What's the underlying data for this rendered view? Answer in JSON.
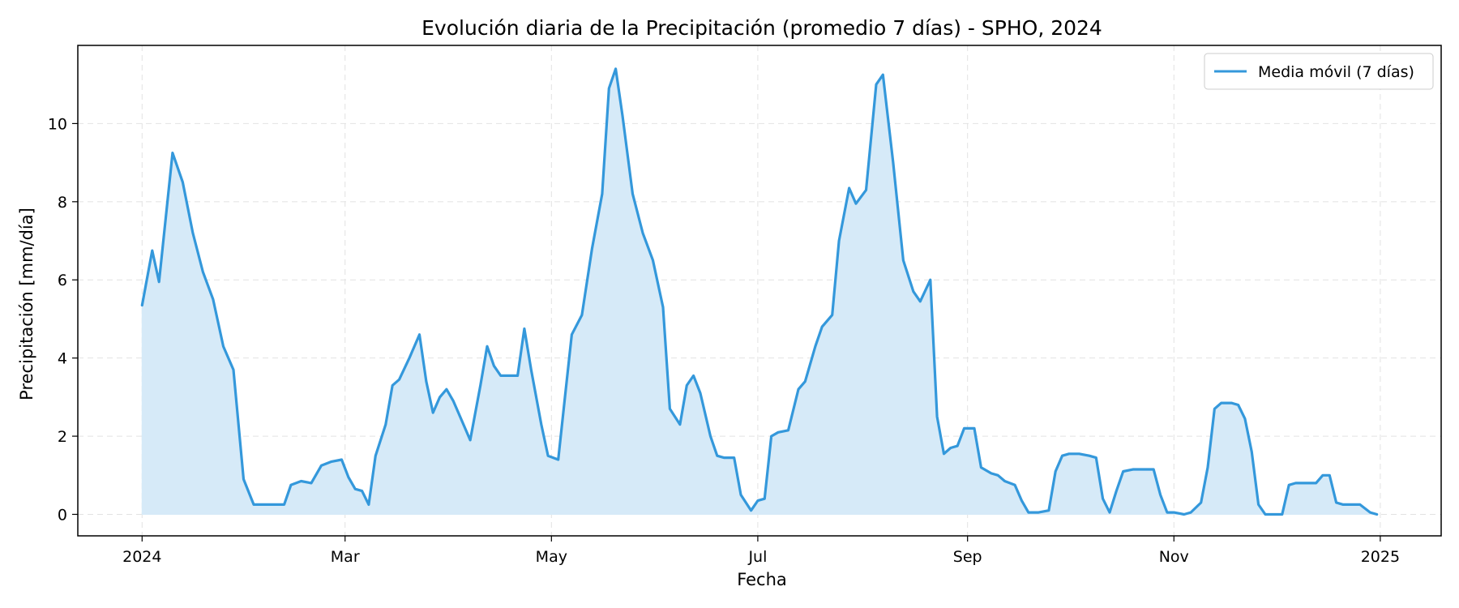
{
  "chart_data": {
    "type": "area",
    "title": "Evolución diaria de la Precipitación (promedio 7 días) - SPHO, 2024",
    "xlabel": "Fecha",
    "ylabel": "Precipitación [mm/día]",
    "x_ticks": [
      {
        "date": "2024-01-01",
        "label": "2024"
      },
      {
        "date": "2024-03-01",
        "label": "Mar"
      },
      {
        "date": "2024-05-01",
        "label": "May"
      },
      {
        "date": "2024-07-01",
        "label": "Jul"
      },
      {
        "date": "2024-09-01",
        "label": "Sep"
      },
      {
        "date": "2024-11-01",
        "label": "Nov"
      },
      {
        "date": "2025-01-01",
        "label": "2025"
      }
    ],
    "y_ticks": [
      0,
      2,
      4,
      6,
      8,
      10
    ],
    "xlim": [
      "2023-12-13",
      "2025-01-19"
    ],
    "ylim": [
      -0.55,
      12.0
    ],
    "grid": true,
    "legend_position": "top-right",
    "series": [
      {
        "name": "Media móvil (7 días)",
        "color": "#3498db",
        "fill_color": "#d6eaf8",
        "points": [
          [
            "2024-01-01",
            5.35
          ],
          [
            "2024-01-04",
            6.75
          ],
          [
            "2024-01-06",
            5.95
          ],
          [
            "2024-01-10",
            9.25
          ],
          [
            "2024-01-13",
            8.5
          ],
          [
            "2024-01-16",
            7.2
          ],
          [
            "2024-01-19",
            6.2
          ],
          [
            "2024-01-22",
            5.5
          ],
          [
            "2024-01-25",
            4.3
          ],
          [
            "2024-01-28",
            3.7
          ],
          [
            "2024-01-31",
            0.9
          ],
          [
            "2024-02-03",
            0.25
          ],
          [
            "2024-02-08",
            0.25
          ],
          [
            "2024-02-12",
            0.25
          ],
          [
            "2024-02-14",
            0.75
          ],
          [
            "2024-02-17",
            0.85
          ],
          [
            "2024-02-20",
            0.8
          ],
          [
            "2024-02-23",
            1.25
          ],
          [
            "2024-02-26",
            1.35
          ],
          [
            "2024-02-29",
            1.4
          ],
          [
            "2024-03-02",
            0.95
          ],
          [
            "2024-03-04",
            0.65
          ],
          [
            "2024-03-06",
            0.6
          ],
          [
            "2024-03-08",
            0.25
          ],
          [
            "2024-03-10",
            1.5
          ],
          [
            "2024-03-13",
            2.3
          ],
          [
            "2024-03-15",
            3.3
          ],
          [
            "2024-03-17",
            3.45
          ],
          [
            "2024-03-20",
            4.0
          ],
          [
            "2024-03-23",
            4.6
          ],
          [
            "2024-03-25",
            3.4
          ],
          [
            "2024-03-27",
            2.6
          ],
          [
            "2024-03-29",
            3.0
          ],
          [
            "2024-03-31",
            3.2
          ],
          [
            "2024-04-02",
            2.9
          ],
          [
            "2024-04-05",
            2.3
          ],
          [
            "2024-04-07",
            1.9
          ],
          [
            "2024-04-10",
            3.3
          ],
          [
            "2024-04-12",
            4.3
          ],
          [
            "2024-04-14",
            3.8
          ],
          [
            "2024-04-16",
            3.55
          ],
          [
            "2024-04-18",
            3.55
          ],
          [
            "2024-04-21",
            3.55
          ],
          [
            "2024-04-23",
            4.75
          ],
          [
            "2024-04-25",
            3.7
          ],
          [
            "2024-04-28",
            2.3
          ],
          [
            "2024-04-30",
            1.5
          ],
          [
            "2024-05-03",
            1.4
          ],
          [
            "2024-05-05",
            3.0
          ],
          [
            "2024-05-07",
            4.6
          ],
          [
            "2024-05-10",
            5.1
          ],
          [
            "2024-05-13",
            6.8
          ],
          [
            "2024-05-16",
            8.2
          ],
          [
            "2024-05-18",
            10.9
          ],
          [
            "2024-05-20",
            11.4
          ],
          [
            "2024-05-22",
            10.2
          ],
          [
            "2024-05-25",
            8.2
          ],
          [
            "2024-05-28",
            7.2
          ],
          [
            "2024-05-31",
            6.5
          ],
          [
            "2024-06-03",
            5.3
          ],
          [
            "2024-06-05",
            2.7
          ],
          [
            "2024-06-08",
            2.3
          ],
          [
            "2024-06-10",
            3.3
          ],
          [
            "2024-06-12",
            3.55
          ],
          [
            "2024-06-14",
            3.1
          ],
          [
            "2024-06-17",
            2.0
          ],
          [
            "2024-06-19",
            1.5
          ],
          [
            "2024-06-21",
            1.45
          ],
          [
            "2024-06-24",
            1.45
          ],
          [
            "2024-06-26",
            0.5
          ],
          [
            "2024-06-29",
            0.1
          ],
          [
            "2024-07-01",
            0.35
          ],
          [
            "2024-07-03",
            0.4
          ],
          [
            "2024-07-05",
            2.0
          ],
          [
            "2024-07-07",
            2.1
          ],
          [
            "2024-07-10",
            2.15
          ],
          [
            "2024-07-13",
            3.2
          ],
          [
            "2024-07-15",
            3.4
          ],
          [
            "2024-07-18",
            4.3
          ],
          [
            "2024-07-20",
            4.8
          ],
          [
            "2024-07-23",
            5.1
          ],
          [
            "2024-07-25",
            7.0
          ],
          [
            "2024-07-28",
            8.35
          ],
          [
            "2024-07-30",
            7.95
          ],
          [
            "2024-08-02",
            8.3
          ],
          [
            "2024-08-05",
            11.0
          ],
          [
            "2024-08-07",
            11.25
          ],
          [
            "2024-08-10",
            9.0
          ],
          [
            "2024-08-13",
            6.5
          ],
          [
            "2024-08-16",
            5.7
          ],
          [
            "2024-08-18",
            5.45
          ],
          [
            "2024-08-21",
            6.0
          ],
          [
            "2024-08-23",
            2.5
          ],
          [
            "2024-08-25",
            1.55
          ],
          [
            "2024-08-27",
            1.7
          ],
          [
            "2024-08-29",
            1.75
          ],
          [
            "2024-08-31",
            2.2
          ],
          [
            "2024-09-03",
            2.2
          ],
          [
            "2024-09-05",
            1.2
          ],
          [
            "2024-09-08",
            1.05
          ],
          [
            "2024-09-10",
            1.0
          ],
          [
            "2024-09-12",
            0.85
          ],
          [
            "2024-09-15",
            0.75
          ],
          [
            "2024-09-17",
            0.35
          ],
          [
            "2024-09-19",
            0.05
          ],
          [
            "2024-09-22",
            0.05
          ],
          [
            "2024-09-25",
            0.1
          ],
          [
            "2024-09-27",
            1.1
          ],
          [
            "2024-09-29",
            1.5
          ],
          [
            "2024-10-01",
            1.55
          ],
          [
            "2024-10-04",
            1.55
          ],
          [
            "2024-10-07",
            1.5
          ],
          [
            "2024-10-09",
            1.45
          ],
          [
            "2024-10-11",
            0.4
          ],
          [
            "2024-10-13",
            0.05
          ],
          [
            "2024-10-15",
            0.6
          ],
          [
            "2024-10-17",
            1.1
          ],
          [
            "2024-10-20",
            1.15
          ],
          [
            "2024-10-23",
            1.15
          ],
          [
            "2024-10-26",
            1.15
          ],
          [
            "2024-10-28",
            0.5
          ],
          [
            "2024-10-30",
            0.05
          ],
          [
            "2024-11-01",
            0.05
          ],
          [
            "2024-11-04",
            0.0
          ],
          [
            "2024-11-06",
            0.05
          ],
          [
            "2024-11-09",
            0.3
          ],
          [
            "2024-11-11",
            1.2
          ],
          [
            "2024-11-13",
            2.7
          ],
          [
            "2024-11-15",
            2.85
          ],
          [
            "2024-11-18",
            2.85
          ],
          [
            "2024-11-20",
            2.8
          ],
          [
            "2024-11-22",
            2.45
          ],
          [
            "2024-11-24",
            1.6
          ],
          [
            "2024-11-26",
            0.25
          ],
          [
            "2024-11-28",
            0.0
          ],
          [
            "2024-12-01",
            0.0
          ],
          [
            "2024-12-03",
            0.0
          ],
          [
            "2024-12-05",
            0.75
          ],
          [
            "2024-12-07",
            0.8
          ],
          [
            "2024-12-10",
            0.8
          ],
          [
            "2024-12-13",
            0.8
          ],
          [
            "2024-12-15",
            1.0
          ],
          [
            "2024-12-17",
            1.0
          ],
          [
            "2024-12-19",
            0.3
          ],
          [
            "2024-12-21",
            0.25
          ],
          [
            "2024-12-24",
            0.25
          ],
          [
            "2024-12-26",
            0.25
          ],
          [
            "2024-12-29",
            0.05
          ],
          [
            "2024-12-31",
            0.0
          ]
        ]
      }
    ]
  }
}
